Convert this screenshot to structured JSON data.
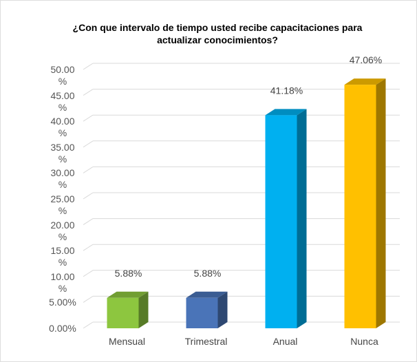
{
  "chart_data": {
    "type": "bar3d",
    "title": "¿Con que intervalo de tiempo usted recibe capacitaciones para actualizar conocimientos?",
    "categories": [
      "Mensual",
      "Trimestral",
      "Anual",
      "Nunca"
    ],
    "values": [
      5.88,
      5.88,
      41.18,
      47.06
    ],
    "value_labels": [
      "5.88%",
      "5.88%",
      "41.18%",
      "47.06%"
    ],
    "colors": [
      "#8dc63f",
      "#4a74b8",
      "#00b0f0",
      "#ffc000"
    ],
    "ylim": [
      0,
      50
    ],
    "yticks": [
      {
        "value": 0,
        "label": "0.00%"
      },
      {
        "value": 5,
        "label": "5.00%"
      },
      {
        "value": 10,
        "label": "10.00 %"
      },
      {
        "value": 15,
        "label": "15.00 %"
      },
      {
        "value": 20,
        "label": "20.00 %"
      },
      {
        "value": 25,
        "label": "25.00 %"
      },
      {
        "value": 30,
        "label": "30.00 %"
      },
      {
        "value": 35,
        "label": "35.00 %"
      },
      {
        "value": 40,
        "label": "40.00 %"
      },
      {
        "value": 45,
        "label": "45.00 %"
      },
      {
        "value": 50,
        "label": "50.00 %"
      }
    ],
    "grid": true
  }
}
